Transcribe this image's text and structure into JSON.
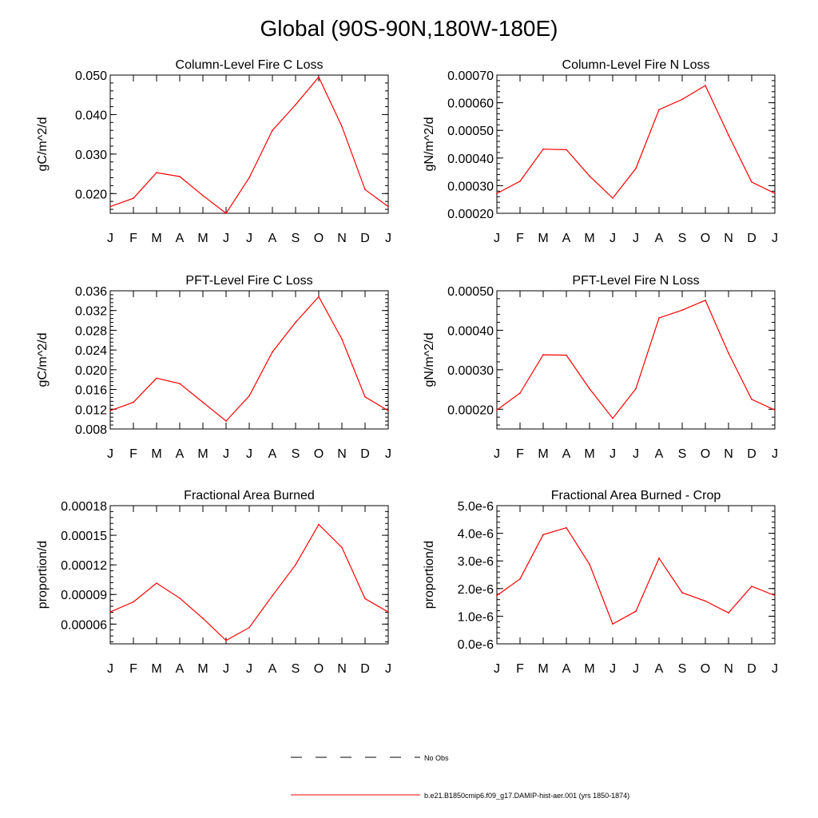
{
  "title": "Global (90S-90N,180W-180E)",
  "line_color": "#ff0000",
  "legend": [
    {
      "label": "No Obs",
      "style": "dashed",
      "color": "#000000"
    },
    {
      "label": "b.e21.B1850cmip6.f09_g17.DAMIP-hist-aer.001 (yrs 1850-1874)",
      "style": "solid",
      "color": "#ff0000"
    }
  ],
  "chart_data": [
    {
      "type": "line",
      "title": "Column-Level Fire C Loss",
      "ylabel": "gC/m^2/d",
      "categories": [
        "J",
        "F",
        "M",
        "A",
        "M",
        "J",
        "J",
        "A",
        "S",
        "O",
        "N",
        "D",
        "J"
      ],
      "ylim": [
        0.015,
        0.05
      ],
      "yticks": [
        0.02,
        0.03,
        0.04,
        0.05
      ],
      "ytick_labels": [
        "0.020",
        "0.030",
        "0.040",
        "0.050"
      ],
      "series": [
        {
          "values": [
            0.0167,
            0.0188,
            0.0253,
            0.0243,
            0.0195,
            0.015,
            0.024,
            0.036,
            0.0425,
            0.0495,
            0.037,
            0.021,
            0.0167
          ]
        }
      ]
    },
    {
      "type": "line",
      "title": "Column-Level Fire N Loss",
      "ylabel": "gN/m^2/d",
      "categories": [
        "J",
        "F",
        "M",
        "A",
        "M",
        "J",
        "J",
        "A",
        "S",
        "O",
        "N",
        "D",
        "J"
      ],
      "ylim": [
        0.0002,
        0.0007
      ],
      "yticks": [
        0.0002,
        0.0003,
        0.0004,
        0.0005,
        0.0006,
        0.0007
      ],
      "ytick_labels": [
        "0.00020",
        "0.00030",
        "0.00040",
        "0.00050",
        "0.00060",
        "0.00070"
      ],
      "series": [
        {
          "values": [
            0.000272,
            0.000316,
            0.000432,
            0.00043,
            0.000335,
            0.000255,
            0.000362,
            0.000575,
            0.000612,
            0.000662,
            0.000483,
            0.000313,
            0.000272
          ]
        }
      ]
    },
    {
      "type": "line",
      "title": "PFT-Level Fire C Loss",
      "ylabel": "gC/m^2/d",
      "categories": [
        "J",
        "F",
        "M",
        "A",
        "M",
        "J",
        "J",
        "A",
        "S",
        "O",
        "N",
        "D",
        "J"
      ],
      "ylim": [
        0.008,
        0.036
      ],
      "yticks": [
        0.008,
        0.012,
        0.016,
        0.02,
        0.024,
        0.028,
        0.032,
        0.036
      ],
      "ytick_labels": [
        "0.008",
        "0.012",
        "0.016",
        "0.020",
        "0.024",
        "0.028",
        "0.032",
        "0.036"
      ],
      "series": [
        {
          "values": [
            0.0117,
            0.0134,
            0.0183,
            0.0172,
            0.0134,
            0.0096,
            0.0147,
            0.0236,
            0.0296,
            0.0348,
            0.0262,
            0.0145,
            0.0117
          ]
        }
      ]
    },
    {
      "type": "line",
      "title": "PFT-Level Fire N Loss",
      "ylabel": "gN/m^2/d",
      "categories": [
        "J",
        "F",
        "M",
        "A",
        "M",
        "J",
        "J",
        "A",
        "S",
        "O",
        "N",
        "D",
        "J"
      ],
      "ylim": [
        0.00015,
        0.0005
      ],
      "yticks": [
        0.0002,
        0.0003,
        0.0004,
        0.0005
      ],
      "ytick_labels": [
        "0.00020",
        "0.00030",
        "0.00040",
        "0.00050"
      ],
      "series": [
        {
          "values": [
            0.000198,
            0.000241,
            0.000338,
            0.000337,
            0.000252,
            0.000177,
            0.000252,
            0.000431,
            0.000451,
            0.000476,
            0.000342,
            0.000225,
            0.000198
          ]
        }
      ]
    },
    {
      "type": "line",
      "title": "Fractional Area Burned",
      "ylabel": "proportion/d",
      "categories": [
        "J",
        "F",
        "M",
        "A",
        "M",
        "J",
        "J",
        "A",
        "S",
        "O",
        "N",
        "D",
        "J"
      ],
      "ylim": [
        4e-05,
        0.00018
      ],
      "yticks": [
        6e-05,
        9e-05,
        0.00012,
        0.00015,
        0.00018
      ],
      "ytick_labels": [
        "0.00006",
        "0.00009",
        "0.00012",
        "0.00015",
        "0.00018"
      ],
      "series": [
        {
          "values": [
            7.23e-05,
            8.25e-05,
            0.0001015,
            8.63e-05,
            6.58e-05,
            4.34e-05,
            5.65e-05,
            8.88e-05,
            0.00012,
            0.0001609,
            0.0001377,
            8.58e-05,
            7.23e-05
          ]
        }
      ]
    },
    {
      "type": "line",
      "title": "Fractional Area Burned - Crop",
      "ylabel": "proportion/d",
      "categories": [
        "J",
        "F",
        "M",
        "A",
        "M",
        "J",
        "J",
        "A",
        "S",
        "O",
        "N",
        "D",
        "J"
      ],
      "ylim": [
        0.0,
        5e-06
      ],
      "yticks": [
        0.0,
        1e-06,
        2e-06,
        3e-06,
        4e-06,
        5e-06
      ],
      "ytick_labels": [
        "0.0e-6",
        "1.0e-6",
        "2.0e-6",
        "3.0e-6",
        "4.0e-6",
        "5.0e-6"
      ],
      "series": [
        {
          "values": [
            1.75e-06,
            2.35e-06,
            3.95e-06,
            4.2e-06,
            2.88e-06,
            7.2e-07,
            1.18e-06,
            3.1e-06,
            1.85e-06,
            1.55e-06,
            1.12e-06,
            2.08e-06,
            1.75e-06
          ]
        }
      ]
    }
  ]
}
